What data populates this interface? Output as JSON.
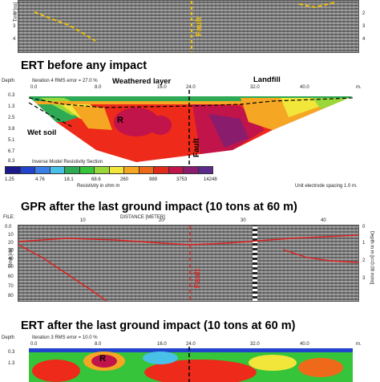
{
  "gpr_top": {
    "fault_label": "Fault",
    "left_axis_label": "Time [ns]",
    "right_ticks": [
      "2",
      "3",
      "4"
    ],
    "left_ticks": [
      "2",
      "3",
      "4"
    ]
  },
  "ert_before": {
    "title": "ERT before any impact",
    "depth_label": "Depth",
    "iteration_text": "Iteration 4 RMS error = 27.0 %",
    "x_ticks": [
      "0.0",
      "8.0",
      "16.0",
      "24.0",
      "32.0",
      "40.0"
    ],
    "x_unit": "m.",
    "depth_ticks": [
      "0.3",
      "1.3",
      "2.5",
      "3.8",
      "5.1",
      "6.7",
      "8.3"
    ],
    "labels": {
      "weathered": "Weathered layer",
      "landfill": "Landfill",
      "wet_soil": "Wet soil",
      "r": "R",
      "fault": "Fault"
    },
    "legend_title": "Inverse Model Resistivity Section",
    "legend_values": [
      "1.25",
      "4.76",
      "18.1",
      "68.6",
      "260",
      "989",
      "3753",
      "14248"
    ],
    "legend_unit": "Resistivity in ohm m",
    "electrode_note": "Unit electrode spacing 1.0 m.",
    "legend_colors": [
      "#1a1a8c",
      "#2244cc",
      "#3a7ee6",
      "#49c0e8",
      "#2eaa55",
      "#36c43a",
      "#9ad83a",
      "#f2e63a",
      "#f5a623",
      "#ee6a1a",
      "#e02a1a",
      "#c0144a",
      "#8a1c6e",
      "#5c2a8a"
    ]
  },
  "gpr_after": {
    "title": "GPR after the last ground impact (10 tons at 60 m)",
    "header_left": "FILE:",
    "header_mid": "DISTANCE [METER]",
    "x_ticks": [
      "10",
      "20",
      "30",
      "40"
    ],
    "left_ticks": [
      "0.0",
      "10",
      "20",
      "30",
      "40",
      "50",
      "60",
      "70",
      "80"
    ],
    "right_ticks": [
      "0",
      "1",
      "2",
      "3"
    ],
    "left_axis_label": "Time [ns]",
    "right_axis_label": "Depth in m [v=0.08 m/ns]",
    "fault_label": "Fault"
  },
  "ert_after": {
    "title": "ERT after the last ground impact (10 tons at 60 m)",
    "depth_label": "Depth",
    "iteration_text": "Iteration 3 RMS error = 10.0 %",
    "x_ticks": [
      "0.0",
      "8.0",
      "16.0",
      "24.0",
      "32.0",
      "40.0"
    ],
    "x_unit": "m.",
    "depth_ticks": [
      "0.3",
      "1.3"
    ],
    "r_label": "R"
  }
}
